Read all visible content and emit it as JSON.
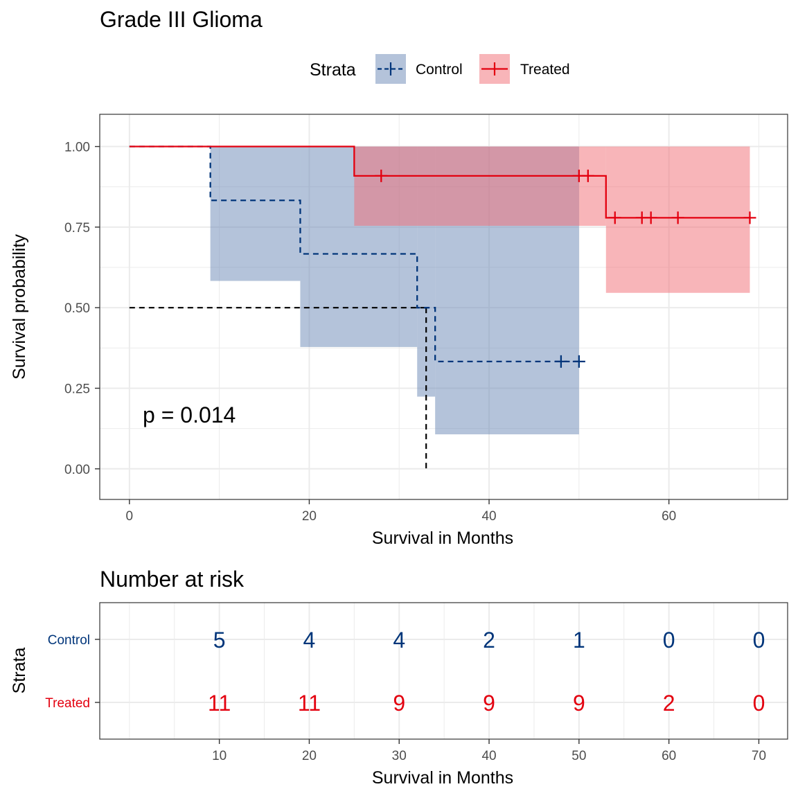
{
  "colors": {
    "control": "#00357a",
    "treated": "#e3000f",
    "control_band": "#6a88b6",
    "treated_band": "#f16b74",
    "grid": "#ebebeb",
    "panel_border": "#333333"
  },
  "chart_data": [
    {
      "type": "line",
      "subtype": "kaplan-meier",
      "title": "Grade III Glioma",
      "xlabel": "Survival in Months",
      "ylabel": "Survival probability",
      "xlim": [
        -3.3,
        73.2
      ],
      "ylim": [
        -0.095,
        1.1
      ],
      "xticks": [
        0,
        20,
        40,
        60
      ],
      "yticks": [
        0.0,
        0.25,
        0.5,
        0.75,
        1.0
      ],
      "ytick_labels": [
        "0.00",
        "0.25",
        "0.50",
        "0.75",
        "1.00"
      ],
      "grid": true,
      "legend": {
        "title": "Strata",
        "position": "top",
        "entries": [
          "Control",
          "Treated"
        ]
      },
      "pvalue_label": "p = 0.014",
      "median_line": {
        "y": 0.5,
        "x": 33
      },
      "series": [
        {
          "name": "Control",
          "line_style": "dashed",
          "color_key": "control",
          "steps": [
            {
              "t": 0,
              "s": 1.0
            },
            {
              "t": 9,
              "s": 0.833
            },
            {
              "t": 19,
              "s": 0.667
            },
            {
              "t": 32,
              "s": 0.5
            },
            {
              "t": 34,
              "s": 0.333
            },
            {
              "t": 50,
              "s": 0.333
            }
          ],
          "ci_steps": [
            {
              "t": 0,
              "lower": 1.0,
              "upper": 1.0
            },
            {
              "t": 9,
              "lower": 0.583,
              "upper": 1.0
            },
            {
              "t": 19,
              "lower": 0.378,
              "upper": 1.0
            },
            {
              "t": 32,
              "lower": 0.224,
              "upper": 1.0
            },
            {
              "t": 34,
              "lower": 0.107,
              "upper": 1.0
            },
            {
              "t": 50,
              "lower": 0.107,
              "upper": 1.0
            }
          ],
          "censor_times": [
            48,
            50
          ]
        },
        {
          "name": "Treated",
          "line_style": "solid",
          "color_key": "treated",
          "steps": [
            {
              "t": 0,
              "s": 1.0
            },
            {
              "t": 25,
              "s": 0.909
            },
            {
              "t": 53,
              "s": 0.779
            },
            {
              "t": 69,
              "s": 0.779
            }
          ],
          "ci_steps": [
            {
              "t": 0,
              "lower": 1.0,
              "upper": 1.0
            },
            {
              "t": 25,
              "lower": 0.754,
              "upper": 1.0
            },
            {
              "t": 53,
              "lower": 0.546,
              "upper": 1.0
            },
            {
              "t": 69,
              "lower": 0.546,
              "upper": 1.0
            }
          ],
          "censor_times": [
            28,
            50,
            51,
            54,
            57,
            58,
            61,
            69
          ]
        }
      ]
    },
    {
      "type": "table",
      "title": "Number at risk",
      "xlabel": "Survival in Months",
      "ylabel": "Strata",
      "xlim": [
        -3.3,
        73.2
      ],
      "xticks": [
        10,
        20,
        30,
        40,
        50,
        60,
        70
      ],
      "rows": [
        {
          "name": "Control",
          "color_key": "control",
          "values": [
            5,
            4,
            4,
            2,
            1,
            0,
            0
          ]
        },
        {
          "name": "Treated",
          "color_key": "treated",
          "values": [
            11,
            11,
            9,
            9,
            9,
            2,
            0
          ]
        }
      ]
    }
  ]
}
